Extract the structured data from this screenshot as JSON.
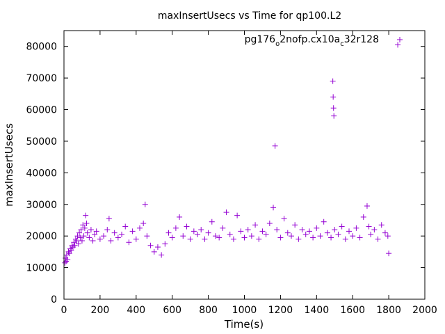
{
  "chart_data": {
    "type": "scatter",
    "title": "maxInsertUsecs vs Time for qp100.L2",
    "xlabel": "Time(s)",
    "ylabel": "maxInsertUsecs",
    "xlim": [
      0,
      2000
    ],
    "ylim": [
      0,
      85000
    ],
    "xticks": [
      0,
      200,
      400,
      600,
      800,
      1000,
      1200,
      1400,
      1600,
      1800,
      2000
    ],
    "yticks": [
      0,
      10000,
      20000,
      30000,
      40000,
      50000,
      60000,
      70000,
      80000
    ],
    "xtick_labels": [
      "0",
      "200",
      "400",
      "600",
      "800",
      "1000",
      "1200",
      "1400",
      "1600",
      "1800",
      "2000"
    ],
    "ytick_labels": [
      "0",
      "10000",
      "20000",
      "30000",
      "40000",
      "50000",
      "60000",
      "70000",
      "80000"
    ],
    "grid": false,
    "legend_position": "top-right",
    "marker": "plus",
    "color": "#9400d3",
    "series": [
      {
        "name": "pg176_o2nofp.cx10a_c32r128",
        "legend_text": {
          "main": "pg176",
          "sub1": "o",
          "mid": "2nofp.cx10a",
          "sub2": "c",
          "end": "32r128"
        },
        "points": [
          [
            5,
            11500
          ],
          [
            8,
            13000
          ],
          [
            12,
            12000
          ],
          [
            15,
            14000
          ],
          [
            20,
            12500
          ],
          [
            25,
            15000
          ],
          [
            30,
            14500
          ],
          [
            35,
            16000
          ],
          [
            40,
            15500
          ],
          [
            45,
            17000
          ],
          [
            50,
            16500
          ],
          [
            55,
            18000
          ],
          [
            60,
            17000
          ],
          [
            65,
            19000
          ],
          [
            70,
            18500
          ],
          [
            75,
            20000
          ],
          [
            80,
            17500
          ],
          [
            85,
            21000
          ],
          [
            90,
            19500
          ],
          [
            95,
            22000
          ],
          [
            100,
            18500
          ],
          [
            105,
            23500
          ],
          [
            110,
            20000
          ],
          [
            115,
            22500
          ],
          [
            120,
            26500
          ],
          [
            125,
            24000
          ],
          [
            130,
            21000
          ],
          [
            140,
            19500
          ],
          [
            150,
            22000
          ],
          [
            160,
            18500
          ],
          [
            170,
            20500
          ],
          [
            180,
            21500
          ],
          [
            200,
            19000
          ],
          [
            220,
            20000
          ],
          [
            240,
            22000
          ],
          [
            250,
            25500
          ],
          [
            260,
            18500
          ],
          [
            280,
            21000
          ],
          [
            300,
            19500
          ],
          [
            320,
            20500
          ],
          [
            340,
            23000
          ],
          [
            360,
            18000
          ],
          [
            380,
            21500
          ],
          [
            400,
            19000
          ],
          [
            420,
            22500
          ],
          [
            440,
            24000
          ],
          [
            450,
            30000
          ],
          [
            460,
            20000
          ],
          [
            480,
            17000
          ],
          [
            500,
            15000
          ],
          [
            520,
            16500
          ],
          [
            540,
            14000
          ],
          [
            560,
            17500
          ],
          [
            580,
            21000
          ],
          [
            600,
            19500
          ],
          [
            620,
            22500
          ],
          [
            640,
            26000
          ],
          [
            660,
            20000
          ],
          [
            680,
            23000
          ],
          [
            700,
            19000
          ],
          [
            720,
            21500
          ],
          [
            740,
            20500
          ],
          [
            760,
            22000
          ],
          [
            780,
            19000
          ],
          [
            800,
            21000
          ],
          [
            820,
            24500
          ],
          [
            840,
            20000
          ],
          [
            860,
            19500
          ],
          [
            880,
            22500
          ],
          [
            900,
            27500
          ],
          [
            920,
            20500
          ],
          [
            940,
            19000
          ],
          [
            960,
            26500
          ],
          [
            980,
            21500
          ],
          [
            1000,
            19500
          ],
          [
            1020,
            22000
          ],
          [
            1040,
            20000
          ],
          [
            1060,
            23500
          ],
          [
            1080,
            19000
          ],
          [
            1100,
            21500
          ],
          [
            1120,
            20500
          ],
          [
            1140,
            24000
          ],
          [
            1160,
            29000
          ],
          [
            1170,
            48500
          ],
          [
            1180,
            22000
          ],
          [
            1200,
            19500
          ],
          [
            1220,
            25500
          ],
          [
            1240,
            21000
          ],
          [
            1260,
            20000
          ],
          [
            1280,
            23500
          ],
          [
            1300,
            19000
          ],
          [
            1320,
            22000
          ],
          [
            1340,
            20500
          ],
          [
            1360,
            21500
          ],
          [
            1380,
            19500
          ],
          [
            1400,
            22500
          ],
          [
            1420,
            20000
          ],
          [
            1440,
            24500
          ],
          [
            1460,
            21000
          ],
          [
            1480,
            19500
          ],
          [
            1490,
            69000
          ],
          [
            1492,
            64000
          ],
          [
            1494,
            60500
          ],
          [
            1496,
            58000
          ],
          [
            1500,
            22000
          ],
          [
            1520,
            20500
          ],
          [
            1540,
            23000
          ],
          [
            1560,
            19000
          ],
          [
            1580,
            21500
          ],
          [
            1600,
            20000
          ],
          [
            1620,
            22500
          ],
          [
            1640,
            19500
          ],
          [
            1660,
            26000
          ],
          [
            1680,
            29500
          ],
          [
            1690,
            23000
          ],
          [
            1700,
            20500
          ],
          [
            1720,
            22000
          ],
          [
            1740,
            19000
          ],
          [
            1760,
            23500
          ],
          [
            1780,
            21000
          ],
          [
            1795,
            20000
          ],
          [
            1800,
            14500
          ],
          [
            1850,
            80500
          ]
        ]
      }
    ]
  }
}
